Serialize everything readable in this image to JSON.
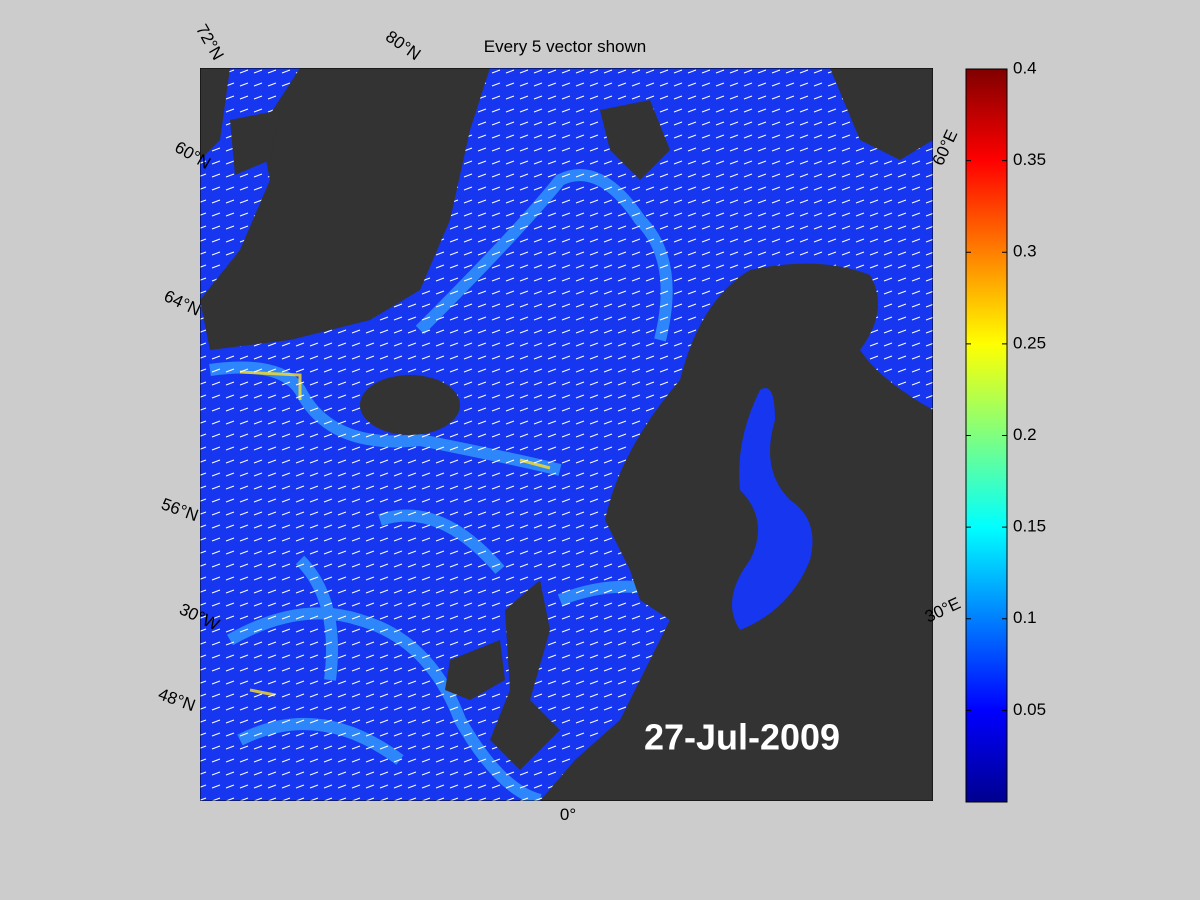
{
  "title": "Every 5 vector shown",
  "date": "27-Jul-2009",
  "graticule_labels": {
    "top": [
      "72°N",
      "80°N"
    ],
    "left": [
      "60°N",
      "64°N",
      "56°N",
      "30°W",
      "48°N"
    ],
    "right": [
      "60°E",
      "30°E"
    ],
    "bottom": [
      "0°"
    ]
  },
  "colorbar": {
    "clim": [
      0,
      0.4
    ],
    "ticks": [
      0.05,
      0.1,
      0.15,
      0.2,
      0.25,
      0.3,
      0.35,
      0.4
    ]
  }
}
